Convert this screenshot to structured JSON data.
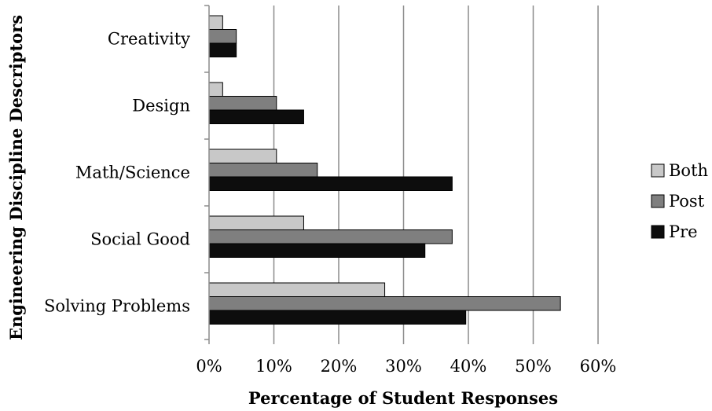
{
  "chart_data": {
    "type": "bar",
    "orientation": "horizontal",
    "title": "",
    "xlabel": "Percentage of Student Responses",
    "ylabel": "Engineering Discipline Descriptors",
    "xlim": [
      0,
      60
    ],
    "x_ticks": [
      "0%",
      "10%",
      "20%",
      "30%",
      "40%",
      "50%",
      "60%"
    ],
    "categories": [
      "Creativity",
      "Design",
      "Math/Science",
      "Social Good",
      "Solving Problems"
    ],
    "series": [
      {
        "name": "Both",
        "color": "#c8c8c8",
        "values": [
          2.1,
          2.1,
          10.4,
          14.6,
          27.1
        ]
      },
      {
        "name": "Post",
        "color": "#7f7f7f",
        "values": [
          4.2,
          10.4,
          16.7,
          37.5,
          54.2
        ]
      },
      {
        "name": "Pre",
        "color": "#0d0d0d",
        "values": [
          4.2,
          14.6,
          37.5,
          33.3,
          39.6
        ]
      }
    ],
    "legend_position": "right",
    "grid": "vertical"
  }
}
